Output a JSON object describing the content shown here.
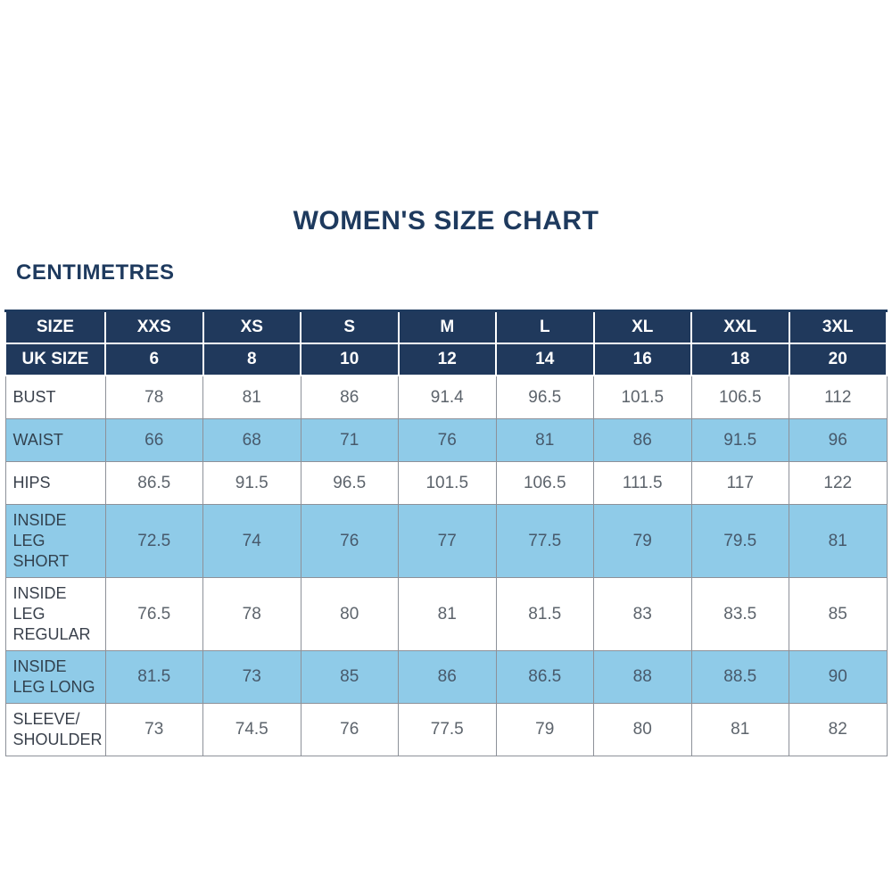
{
  "chart_data": {
    "type": "table",
    "title": "WOMEN'S SIZE CHART",
    "unit_label": "CENTIMETRES",
    "header_rows": [
      {
        "label": "SIZE",
        "values": [
          "XXS",
          "XS",
          "S",
          "M",
          "L",
          "XL",
          "XXL",
          "3XL"
        ]
      },
      {
        "label": "UK SIZE",
        "values": [
          "6",
          "8",
          "10",
          "12",
          "14",
          "16",
          "18",
          "20"
        ]
      }
    ],
    "rows": [
      {
        "label": "BUST",
        "highlight": false,
        "values": [
          "78",
          "81",
          "86",
          "91.4",
          "96.5",
          "101.5",
          "106.5",
          "112"
        ]
      },
      {
        "label": "WAIST",
        "highlight": true,
        "values": [
          "66",
          "68",
          "71",
          "76",
          "81",
          "86",
          "91.5",
          "96"
        ]
      },
      {
        "label": "HIPS",
        "highlight": false,
        "values": [
          "86.5",
          "91.5",
          "96.5",
          "101.5",
          "106.5",
          "111.5",
          "117",
          "122"
        ]
      },
      {
        "label": "INSIDE LEG SHORT",
        "highlight": true,
        "values": [
          "72.5",
          "74",
          "76",
          "77",
          "77.5",
          "79",
          "79.5",
          "81"
        ]
      },
      {
        "label": "INSIDE LEG REGULAR",
        "highlight": false,
        "values": [
          "76.5",
          "78",
          "80",
          "81",
          "81.5",
          "83",
          "83.5",
          "85"
        ]
      },
      {
        "label": "INSIDE LEG LONG",
        "highlight": true,
        "values": [
          "81.5",
          "73",
          "85",
          "86",
          "86.5",
          "88",
          "88.5",
          "90"
        ]
      },
      {
        "label": "SLEEVE/ SHOULDER",
        "highlight": false,
        "values": [
          "73",
          "74.5",
          "76",
          "77.5",
          "79",
          "80",
          "81",
          "82"
        ]
      }
    ],
    "colors": {
      "navy_header_bg": "#20395c",
      "navy_text": "#1e3a5e",
      "highlight_row_bg": "#8fcbe8",
      "body_text": "#5d646c",
      "label_text": "#3a414c",
      "border_gray": "#8d9199"
    }
  }
}
